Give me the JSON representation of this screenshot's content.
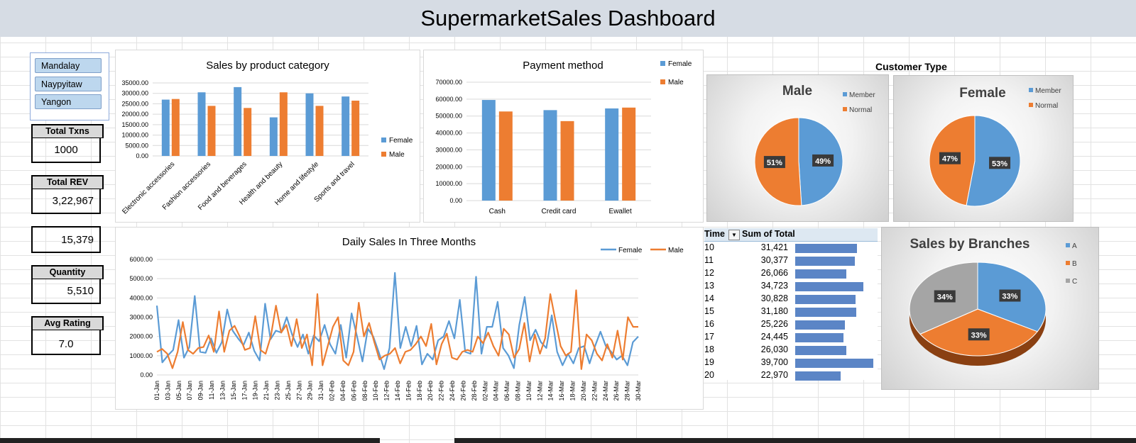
{
  "dashboard_title": "SupermarketSales Dashboard",
  "slicer": {
    "items": [
      "Mandalay",
      "Naypyitaw",
      "Yangon"
    ]
  },
  "kpis": {
    "total_txns": {
      "label": "Total Txns",
      "value": "1000"
    },
    "total_rev": {
      "label": "Total REV",
      "value": "3,22,967"
    },
    "unlabeled_value": "15,379",
    "quantity": {
      "label": "Quantity",
      "value": "5,510"
    },
    "avg_rating": {
      "label": "Avg Rating",
      "value": "7.0"
    }
  },
  "colors": {
    "female": "#5b9bd5",
    "male": "#ed7d31",
    "gray": "#a5a5a5",
    "bar": "#5b85c6"
  },
  "chart_data": [
    {
      "type": "bar",
      "title": "Sales by product category",
      "categories": [
        "Electronic accessories",
        "Fashion accessories",
        "Food and beverages",
        "Health and beauty",
        "Home and lifestyle",
        "Sports and travel"
      ],
      "series": [
        {
          "name": "Female",
          "values": [
            27000,
            30500,
            33000,
            18500,
            30000,
            28500
          ]
        },
        {
          "name": "Male",
          "values": [
            27300,
            24000,
            23000,
            30500,
            24000,
            26500
          ]
        }
      ],
      "ylim": [
        0,
        35000
      ],
      "yticks": [
        "35000.00",
        "30000.00",
        "25000.00",
        "20000.00",
        "15000.00",
        "10000.00",
        "5000.00",
        "0.00"
      ],
      "legend": "right"
    },
    {
      "type": "bar",
      "title": "Payment method",
      "categories": [
        "Cash",
        "Credit card",
        "Ewallet"
      ],
      "series": [
        {
          "name": "Female",
          "values": [
            59500,
            53500,
            54500
          ]
        },
        {
          "name": "Male",
          "values": [
            52700,
            47000,
            55000
          ]
        }
      ],
      "ylim": [
        0,
        70000
      ],
      "yticks": [
        "70000.00",
        "60000.00",
        "50000.00",
        "40000.00",
        "30000.00",
        "20000.00",
        "10000.00",
        "0.00"
      ],
      "legend": "top-right"
    },
    {
      "type": "line",
      "title": "Daily Sales In Three Months",
      "x_tick_labels": [
        "01-Jan",
        "03-Jan",
        "05-Jan",
        "07-Jan",
        "09-Jan",
        "11-Jan",
        "13-Jan",
        "15-Jan",
        "17-Jan",
        "19-Jan",
        "21-Jan",
        "23-Jan",
        "25-Jan",
        "27-Jan",
        "29-Jan",
        "31-Jan",
        "02-Feb",
        "04-Feb",
        "06-Feb",
        "08-Feb",
        "10-Feb",
        "12-Feb",
        "14-Feb",
        "16-Feb",
        "18-Feb",
        "20-Feb",
        "22-Feb",
        "24-Feb",
        "26-Feb",
        "28-Feb",
        "02-Mar",
        "04-Mar",
        "06-Mar",
        "08-Mar",
        "10-Mar",
        "12-Mar",
        "14-Mar",
        "16-Mar",
        "18-Mar",
        "20-Mar",
        "22-Mar",
        "24-Mar",
        "26-Mar",
        "28-Mar",
        "30-Mar"
      ],
      "series": [
        {
          "name": "Female",
          "values": [
            3600,
            650,
            1000,
            1300,
            2850,
            900,
            1450,
            4100,
            1200,
            1150,
            1900,
            1150,
            1700,
            3400,
            2300,
            1900,
            1550,
            2200,
            1250,
            750,
            3700,
            1850,
            2300,
            2200,
            3000,
            2100,
            1450,
            2100,
            1100,
            2050,
            1750,
            2600,
            1600,
            1100,
            2600,
            900,
            3200,
            2000,
            700,
            2400,
            2000,
            1200,
            300,
            1400,
            5300,
            1400,
            2500,
            1500,
            2550,
            550,
            1100,
            800,
            1800,
            2000,
            2800,
            1900,
            3900,
            1200,
            1100,
            5100,
            1100,
            2500,
            2500,
            3800,
            1400,
            1000,
            350,
            2600,
            4050,
            1800,
            2350,
            1700,
            1400,
            3100,
            1200,
            500,
            1100,
            600,
            1400,
            1500,
            600,
            1500,
            2250,
            1500,
            1200,
            800,
            1000,
            500,
            1700,
            2000
          ],
          "x_range": "01-Jan to 30-Mar"
        },
        {
          "name": "Male",
          "values": [
            1200,
            1350,
            1100,
            350,
            1200,
            2750,
            1300,
            1100,
            1400,
            1450,
            2050,
            1200,
            3300,
            1200,
            2300,
            2550,
            2000,
            1300,
            1400,
            3050,
            1300,
            1100,
            2000,
            3600,
            2200,
            2600,
            1500,
            2900,
            1400,
            2100,
            500,
            4200,
            500,
            1500,
            2500,
            3000,
            750,
            500,
            1200,
            3750,
            2000,
            2700,
            1700,
            800,
            1000,
            1100,
            1400,
            600,
            1200,
            1300,
            1600,
            2000,
            1500,
            2650,
            550,
            1600,
            2150,
            900,
            800,
            1200,
            1300,
            1200,
            2000,
            1650,
            2200,
            1500,
            1000,
            2400,
            2100,
            900,
            1350,
            2700,
            700,
            2100,
            1100,
            1900,
            4200,
            2800,
            1500,
            1000,
            1200,
            4400,
            300,
            2100,
            1800,
            1100,
            750,
            1600,
            900,
            2300,
            800,
            3000,
            2500,
            2500
          ]
        }
      ],
      "ylim": [
        0,
        6000
      ],
      "yticks": [
        "6000.00",
        "5000.00",
        "4000.00",
        "3000.00",
        "2000.00",
        "1000.00",
        "0.00"
      ],
      "legend": "top-right"
    },
    {
      "type": "pie",
      "title": "Male",
      "labels": [
        "Member",
        "Normal"
      ],
      "values": [
        49,
        51
      ],
      "value_labels": [
        "49%",
        "51%"
      ]
    },
    {
      "type": "pie",
      "title": "Female",
      "labels": [
        "Member",
        "Normal"
      ],
      "values": [
        53,
        47
      ],
      "value_labels": [
        "53%",
        "47%"
      ]
    },
    {
      "type": "pie",
      "title": "Sales by Branches",
      "labels": [
        "A",
        "B",
        "C"
      ],
      "values": [
        33,
        33,
        34
      ],
      "value_labels": [
        "33%",
        "33%",
        "34%"
      ]
    },
    {
      "type": "table",
      "headers": [
        "Time",
        "Sum of Total"
      ],
      "rows": [
        {
          "time": "10",
          "total": "31,421",
          "value": 31421
        },
        {
          "time": "11",
          "total": "30,377",
          "value": 30377
        },
        {
          "time": "12",
          "total": "26,066",
          "value": 26066
        },
        {
          "time": "13",
          "total": "34,723",
          "value": 34723
        },
        {
          "time": "14",
          "total": "30,828",
          "value": 30828
        },
        {
          "time": "15",
          "total": "31,180",
          "value": 31180
        },
        {
          "time": "16",
          "total": "25,226",
          "value": 25226
        },
        {
          "time": "17",
          "total": "24,445",
          "value": 24445
        },
        {
          "time": "18",
          "total": "26,030",
          "value": 26030
        },
        {
          "time": "19",
          "total": "39,700",
          "value": 39700
        },
        {
          "time": "20",
          "total": "22,970",
          "value": 22970
        }
      ]
    }
  ],
  "customer_type_title": "Customer Type"
}
